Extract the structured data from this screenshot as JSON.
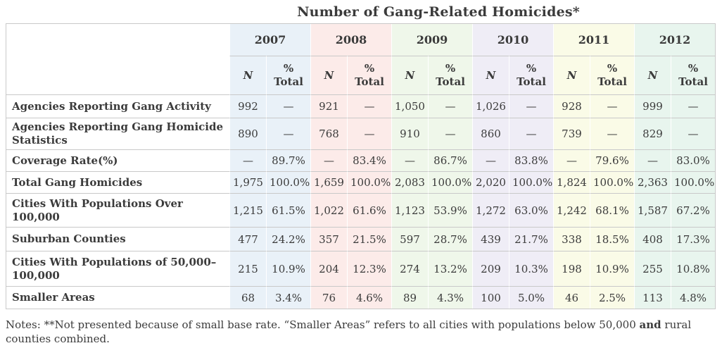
{
  "page": {
    "background": "#ffffff",
    "text_color": "#3b3b3b",
    "border_color": "#c9c9c9",
    "grid_line_color": "#ffffff"
  },
  "chart_data": {
    "type": "table",
    "title": "Number of Gang-Related Homicides*",
    "year_groups": [
      {
        "label": "2007",
        "color": "#e9f1f8"
      },
      {
        "label": "2008",
        "color": "#fcebe9"
      },
      {
        "label": "2009",
        "color": "#eff7ea"
      },
      {
        "label": "2010",
        "color": "#efedf6"
      },
      {
        "label": "2011",
        "color": "#fafbe7"
      },
      {
        "label": "2012",
        "color": "#e8f5ee"
      }
    ],
    "sub_columns": [
      "N",
      "%\nTotal"
    ],
    "rows": [
      {
        "label": "Agencies Reporting Gang Activity",
        "cells": [
          "992",
          "—",
          "921",
          "—",
          "1,050",
          "—",
          "1,026",
          "—",
          "928",
          "—",
          "999",
          "—"
        ]
      },
      {
        "label": "Agencies Reporting Gang Homicide Statistics",
        "cells": [
          "890",
          "—",
          "768",
          "—",
          "910",
          "—",
          "860",
          "—",
          "739",
          "—",
          "829",
          "—"
        ]
      },
      {
        "label": "Coverage Rate(%)",
        "cells": [
          "—",
          "89.7%",
          "—",
          "83.4%",
          "—",
          "86.7%",
          "—",
          "83.8%",
          "—",
          "79.6%",
          "—",
          "83.0%"
        ]
      },
      {
        "label": "Total Gang Homicides",
        "cells": [
          "1,975",
          "100.0%",
          "1,659",
          "100.0%",
          "2,083",
          "100.0%",
          "2,020",
          "100.0%",
          "1,824",
          "100.0%",
          "2,363",
          "100.0%"
        ]
      },
      {
        "label": "Cities With Populations Over 100,000",
        "cells": [
          "1,215",
          "61.5%",
          "1,022",
          "61.6%",
          "1,123",
          "53.9%",
          "1,272",
          "63.0%",
          "1,242",
          "68.1%",
          "1,587",
          "67.2%"
        ]
      },
      {
        "label": "Suburban Counties",
        "cells": [
          "477",
          "24.2%",
          "357",
          "21.5%",
          "597",
          "28.7%",
          "439",
          "21.7%",
          "338",
          "18.5%",
          "408",
          "17.3%"
        ]
      },
      {
        "label": "Cities With Populations of 50,000–100,000",
        "cells": [
          "215",
          "10.9%",
          "204",
          "12.3%",
          "274",
          "13.2%",
          "209",
          "10.3%",
          "198",
          "10.9%",
          "255",
          "10.8%"
        ]
      },
      {
        "label": "Smaller Areas",
        "cells": [
          "68",
          "3.4%",
          "76",
          "4.6%",
          "89",
          "4.3%",
          "100",
          "5.0%",
          "46",
          "2.5%",
          "113",
          "4.8%"
        ]
      }
    ],
    "notes": {
      "before": "Notes: **Not presented because of small base rate. “Smaller Areas” refers to all cities with populations below 50,000 ",
      "bold": "and",
      "after": " rural counties combined."
    }
  }
}
